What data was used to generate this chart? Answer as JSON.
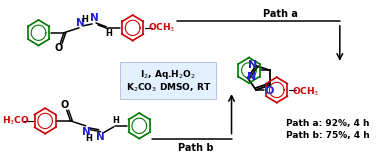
{
  "bg_color": "#ffffff",
  "box_color": "#ddeeff",
  "reagents_line1": "I$_2$, Aq.H$_2$O$_2$",
  "reagents_line2": "K$_2$CO$_3$ DMSO, RT",
  "path_a_label": "Path a",
  "path_b_label": "Path b",
  "yield_line1": "Path a: 92%, 4 h",
  "yield_line2": "Path b: 75%, 4 h",
  "black": "#000000",
  "blue": "#2222cc",
  "red": "#cc0000",
  "green": "#007700"
}
